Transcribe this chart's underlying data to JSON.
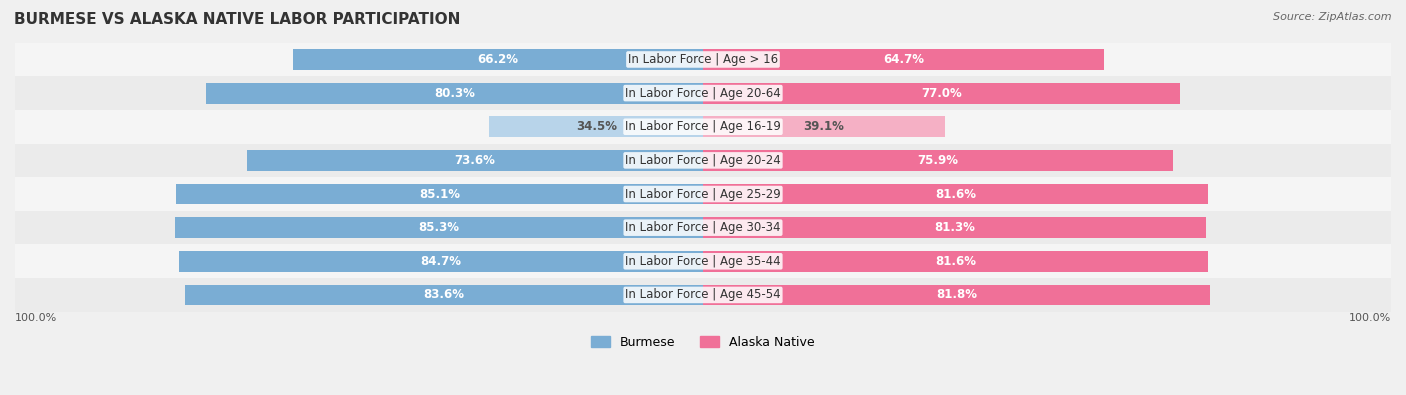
{
  "title": "BURMESE VS ALASKA NATIVE LABOR PARTICIPATION",
  "source": "Source: ZipAtlas.com",
  "categories": [
    "In Labor Force | Age > 16",
    "In Labor Force | Age 20-64",
    "In Labor Force | Age 16-19",
    "In Labor Force | Age 20-24",
    "In Labor Force | Age 25-29",
    "In Labor Force | Age 30-34",
    "In Labor Force | Age 35-44",
    "In Labor Force | Age 45-54"
  ],
  "burmese_values": [
    66.2,
    80.3,
    34.5,
    73.6,
    85.1,
    85.3,
    84.7,
    83.6
  ],
  "alaska_values": [
    64.7,
    77.0,
    39.1,
    75.9,
    81.6,
    81.3,
    81.6,
    81.8
  ],
  "burmese_color_strong": "#7aadd4",
  "burmese_color_light": "#b8d4ea",
  "alaska_color_strong": "#f07098",
  "alaska_color_light": "#f5b0c5",
  "bar_bg_color": "#e8e8e8",
  "row_bg_color_odd": "#f5f5f5",
  "row_bg_color_even": "#ebebeb",
  "label_fontsize": 8.5,
  "value_fontsize": 8.5,
  "title_fontsize": 11,
  "legend_fontsize": 9,
  "max_value": 100.0,
  "bar_height": 0.62,
  "light_threshold": 50.0
}
